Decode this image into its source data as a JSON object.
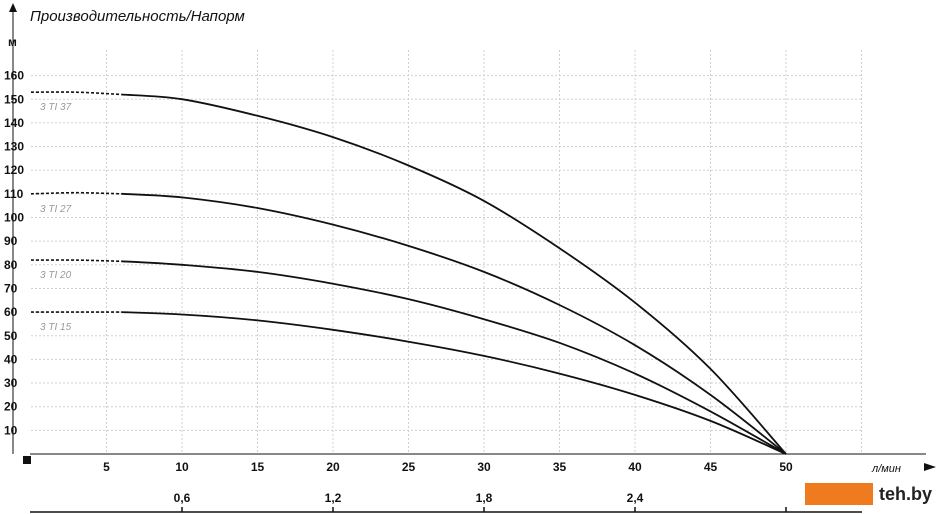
{
  "chart_data": {
    "type": "line",
    "title": "Производительность/Напорм",
    "ylabel": "м",
    "xlabel": "л/мин",
    "ylim": [
      0,
      170
    ],
    "xlim": [
      0,
      55
    ],
    "grid": true,
    "y_ticks": [
      10,
      20,
      30,
      40,
      50,
      60,
      70,
      80,
      90,
      100,
      110,
      120,
      130,
      140,
      150,
      160
    ],
    "x_ticks": [
      5,
      10,
      15,
      20,
      25,
      30,
      35,
      40,
      45,
      50
    ],
    "secondary_x_ticks": [
      {
        "label": "0,6",
        "at": 10
      },
      {
        "label": "1,2",
        "at": 20
      },
      {
        "label": "1,8",
        "at": 30
      },
      {
        "label": "2,4",
        "at": 40
      }
    ],
    "series": [
      {
        "name": "3 TI 37",
        "shutoff_head": 153,
        "dashed_until": 6,
        "x": [
          0,
          3,
          6,
          10,
          15,
          20,
          25,
          30,
          35,
          40,
          45,
          50
        ],
        "y": [
          153,
          153,
          152,
          150,
          143,
          134,
          122,
          107,
          87,
          64,
          36,
          0
        ]
      },
      {
        "name": "3 TI 27",
        "shutoff_head": 110,
        "dashed_until": 6,
        "x": [
          0,
          3,
          6,
          10,
          15,
          20,
          25,
          30,
          35,
          40,
          45,
          50
        ],
        "y": [
          110,
          110.5,
          110,
          108.5,
          104,
          97,
          88,
          77,
          63,
          46,
          25,
          0
        ]
      },
      {
        "name": "3 TI 20",
        "shutoff_head": 82,
        "dashed_until": 6,
        "x": [
          0,
          3,
          6,
          10,
          15,
          20,
          25,
          30,
          35,
          40,
          45,
          50
        ],
        "y": [
          82,
          82,
          81.5,
          80,
          77,
          72,
          65.5,
          57,
          47,
          34,
          18,
          0
        ]
      },
      {
        "name": "3 TI 15",
        "shutoff_head": 60,
        "dashed_until": 6,
        "x": [
          0,
          3,
          6,
          10,
          15,
          20,
          25,
          30,
          35,
          40,
          45,
          50
        ],
        "y": [
          60,
          60,
          60,
          59,
          56.5,
          52.5,
          47.5,
          41.5,
          34,
          25,
          14,
          0
        ]
      }
    ]
  },
  "logo": {
    "text": "teh.by",
    "color": "#f07a1e"
  }
}
